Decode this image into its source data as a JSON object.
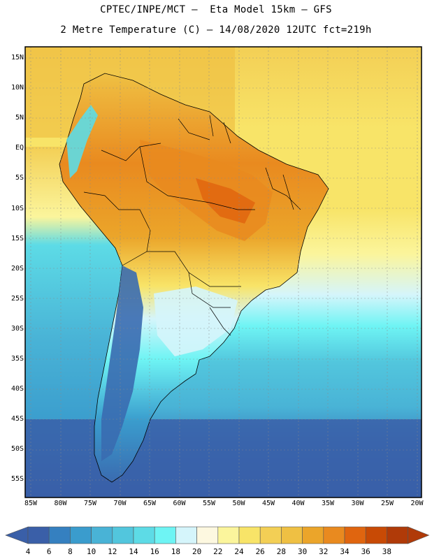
{
  "title_line1": "CPTEC/INPE/MCT –  Eta Model 15km – GFS",
  "title_line2": "2 Metre Temperature (C) – 14/08/2020 12UTC fct=219h",
  "lat_labels": [
    "15N",
    "10N",
    "5N",
    "EQ",
    "5S",
    "10S",
    "15S",
    "20S",
    "25S",
    "30S",
    "35S",
    "40S",
    "45S",
    "50S",
    "55S"
  ],
  "lon_labels": [
    "85W",
    "80W",
    "75W",
    "70W",
    "65W",
    "60W",
    "55W",
    "50W",
    "45W",
    "40W",
    "35W",
    "30W",
    "25W",
    "20W"
  ],
  "colorbar": {
    "labels": [
      "4",
      "6",
      "8",
      "10",
      "12",
      "14",
      "16",
      "18",
      "20",
      "22",
      "24",
      "26",
      "28",
      "30",
      "32",
      "34",
      "36",
      "38"
    ],
    "colors": [
      "#3a5fa8",
      "#3580c0",
      "#3a9ccd",
      "#49b3d6",
      "#52c6dd",
      "#5ddbe6",
      "#6ef4f4",
      "#d5f5fb",
      "#fdf8e0",
      "#fbf59c",
      "#f8e468",
      "#f3cf55",
      "#efc043",
      "#eba52a",
      "#e98a1f",
      "#e0650f",
      "#c84a05",
      "#b03a08"
    ]
  },
  "fields": {
    "ocean_warm": "#f7d66a",
    "ocean_cool": "#52c6dd",
    "ocean_cold": "#3a80c0",
    "land_hot": "#e98a1f",
    "land_warm": "#efc043",
    "andes": "#5ddbe6",
    "patagonia": "#3a6bb0"
  }
}
